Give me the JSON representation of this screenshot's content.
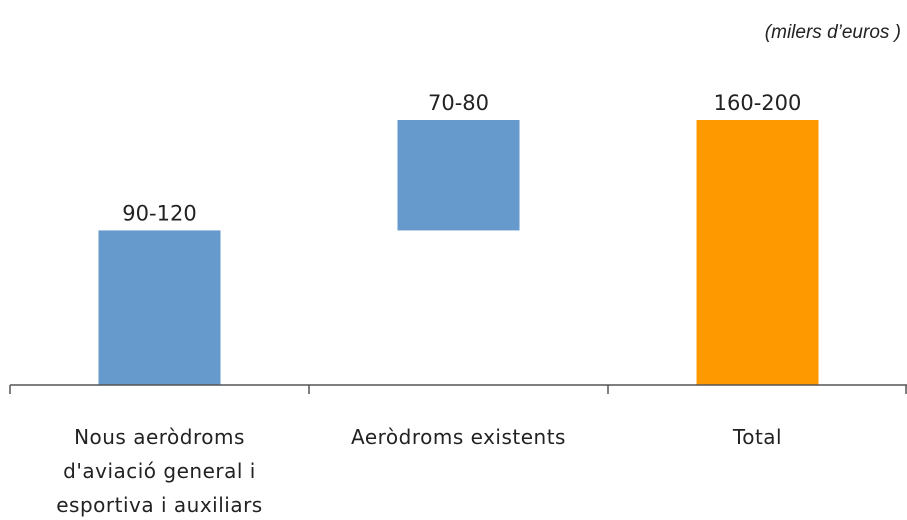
{
  "unit_note": "(milers d’euros )",
  "chart_data": {
    "type": "bar",
    "subtype": "waterfall",
    "unit": "(milers d’euros )",
    "grid": false,
    "categories": [
      [
        "Nous aeròdroms",
        "d'aviació general i",
        "esportiva i auxiliars"
      ],
      [
        "Aeròdroms existents"
      ],
      [
        "Total"
      ]
    ],
    "bars": [
      {
        "label": "90-120",
        "base": 0,
        "value": 105,
        "color": "#6699CC"
      },
      {
        "label": "70-80",
        "base": 105,
        "value": 75,
        "color": "#6699CC"
      },
      {
        "label": "160-200",
        "base": 0,
        "value": 180,
        "color": "#FF9900"
      }
    ],
    "ylim": [
      0,
      240
    ]
  }
}
